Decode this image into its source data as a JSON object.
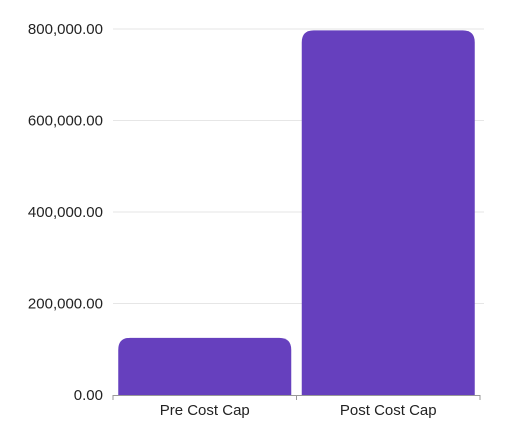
{
  "chart_data": {
    "type": "bar",
    "categories": [
      "Pre Cost Cap",
      "Post Cost Cap"
    ],
    "values": [
      125000,
      797000
    ],
    "ylim": [
      0,
      800000
    ],
    "yticks": [
      0,
      200000,
      400000,
      600000,
      800000
    ],
    "ytick_labels": [
      "0.00",
      "200,000.00",
      "400,000.00",
      "600,000.00",
      "800,000.00"
    ],
    "grid": true,
    "bar_color": "#6640BE",
    "grid_color": "#E6E6E6",
    "axis_color": "#999999",
    "text_color": "#222222"
  }
}
